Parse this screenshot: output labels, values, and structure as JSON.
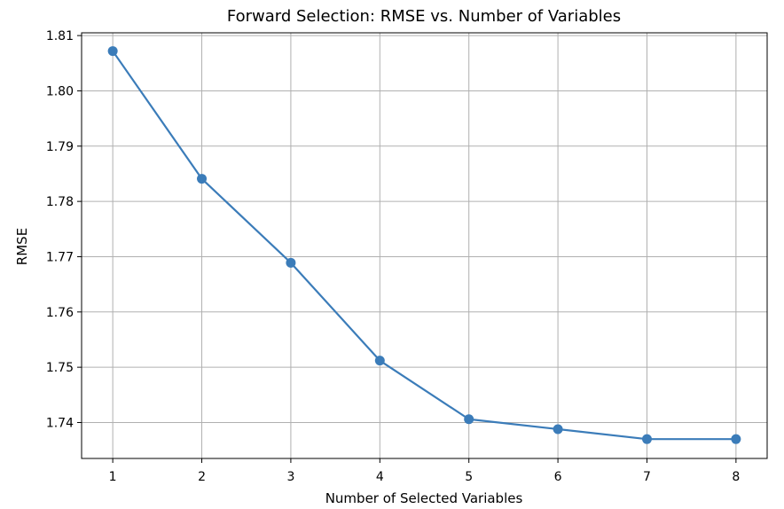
{
  "chart_data": {
    "type": "line",
    "title": "Forward Selection: RMSE vs. Number of Variables",
    "xlabel": "Number of Selected Variables",
    "ylabel": "RMSE",
    "x": [
      1,
      2,
      3,
      4,
      5,
      6,
      7,
      8
    ],
    "series": [
      {
        "values": [
          1.8072,
          1.7841,
          1.7689,
          1.7512,
          1.7406,
          1.7388,
          1.737,
          1.737
        ],
        "color": "#3b7cb9",
        "marker": "circle"
      }
    ],
    "x_ticks": [
      "1",
      "2",
      "3",
      "4",
      "5",
      "6",
      "7",
      "8"
    ],
    "y_ticks": [
      "1.74",
      "1.75",
      "1.76",
      "1.77",
      "1.78",
      "1.79",
      "1.80",
      "1.81"
    ],
    "xlim": [
      0.65,
      8.35
    ],
    "ylim": [
      1.7335,
      1.8105
    ],
    "grid": true,
    "legend": false
  }
}
